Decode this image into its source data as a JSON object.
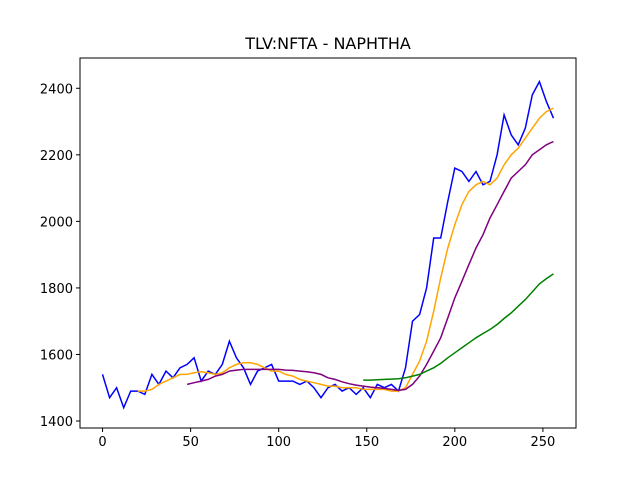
{
  "chart_data": {
    "type": "line",
    "title": "TLV:NFTA - NAPHTHA",
    "x": [
      0,
      4,
      8,
      12,
      16,
      20,
      24,
      28,
      32,
      36,
      40,
      44,
      48,
      52,
      56,
      60,
      64,
      68,
      72,
      76,
      80,
      84,
      88,
      92,
      96,
      100,
      104,
      108,
      112,
      116,
      120,
      124,
      128,
      132,
      136,
      140,
      144,
      148,
      152,
      156,
      160,
      164,
      168,
      172,
      176,
      180,
      184,
      188,
      192,
      196,
      200,
      204,
      208,
      212,
      216,
      220,
      224,
      228,
      232,
      236,
      240,
      244,
      248,
      252,
      256
    ],
    "series": [
      {
        "color": "#0000ff",
        "values": [
          1540,
          1470,
          1500,
          1440,
          1490,
          1490,
          1480,
          1540,
          1510,
          1550,
          1530,
          1560,
          1570,
          1590,
          1520,
          1550,
          1540,
          1570,
          1640,
          1590,
          1560,
          1510,
          1550,
          1560,
          1570,
          1520,
          1520,
          1520,
          1510,
          1520,
          1500,
          1470,
          1500,
          1510,
          1490,
          1500,
          1480,
          1500,
          1470,
          1510,
          1500,
          1510,
          1490,
          1560,
          1700,
          1720,
          1800,
          1950,
          1950,
          2060,
          2160,
          2150,
          2120,
          2150,
          2110,
          2120,
          2200,
          2320,
          2260,
          2230,
          2280,
          2380,
          2420,
          2360,
          2310
        ]
      },
      {
        "color": "#ffa500",
        "values": [
          null,
          null,
          null,
          null,
          null,
          1490,
          1490,
          1495,
          1510,
          1520,
          1530,
          1540,
          1540,
          1545,
          1548,
          1545,
          1540,
          1545,
          1560,
          1570,
          1575,
          1575,
          1570,
          1560,
          1550,
          1550,
          1540,
          1535,
          1525,
          1520,
          1515,
          1510,
          1505,
          1505,
          1500,
          1500,
          1500,
          1495,
          1495,
          1495,
          1495,
          1490,
          1490,
          1500,
          1540,
          1580,
          1640,
          1730,
          1830,
          1920,
          1990,
          2050,
          2090,
          2110,
          2120,
          2110,
          2130,
          2170,
          2200,
          2220,
          2250,
          2280,
          2310,
          2330,
          2340
        ]
      },
      {
        "color": "#800080",
        "values": [
          null,
          null,
          null,
          null,
          null,
          null,
          null,
          null,
          null,
          null,
          null,
          null,
          1510,
          1515,
          1520,
          1525,
          1535,
          1540,
          1550,
          1553,
          1555,
          1555,
          1555,
          1555,
          1555,
          1555,
          1553,
          1552,
          1550,
          1548,
          1545,
          1540,
          1530,
          1525,
          1518,
          1512,
          1508,
          1505,
          1502,
          1500,
          1498,
          1495,
          1492,
          1495,
          1510,
          1535,
          1570,
          1610,
          1650,
          1710,
          1770,
          1820,
          1870,
          1920,
          1960,
          2010,
          2050,
          2090,
          2130,
          2150,
          2170,
          2200,
          2215,
          2230,
          2240
        ]
      },
      {
        "color": "#008000",
        "values": [
          null,
          null,
          null,
          null,
          null,
          null,
          null,
          null,
          null,
          null,
          null,
          null,
          null,
          null,
          null,
          null,
          null,
          null,
          null,
          null,
          null,
          null,
          null,
          null,
          null,
          null,
          null,
          null,
          null,
          null,
          null,
          null,
          null,
          null,
          null,
          null,
          null,
          1523,
          1523,
          1524,
          1525,
          1526,
          1527,
          1530,
          1535,
          1540,
          1550,
          1560,
          1573,
          1590,
          1605,
          1620,
          1635,
          1650,
          1663,
          1675,
          1690,
          1708,
          1725,
          1745,
          1765,
          1788,
          1812,
          1828,
          1842
        ]
      }
    ],
    "xlim": [
      -12.8,
      268.8
    ],
    "ylim": [
      1379,
      2491
    ],
    "xticks": [
      0,
      50,
      100,
      150,
      200,
      250
    ],
    "yticks": [
      1400,
      1600,
      1800,
      2000,
      2200,
      2400
    ]
  }
}
